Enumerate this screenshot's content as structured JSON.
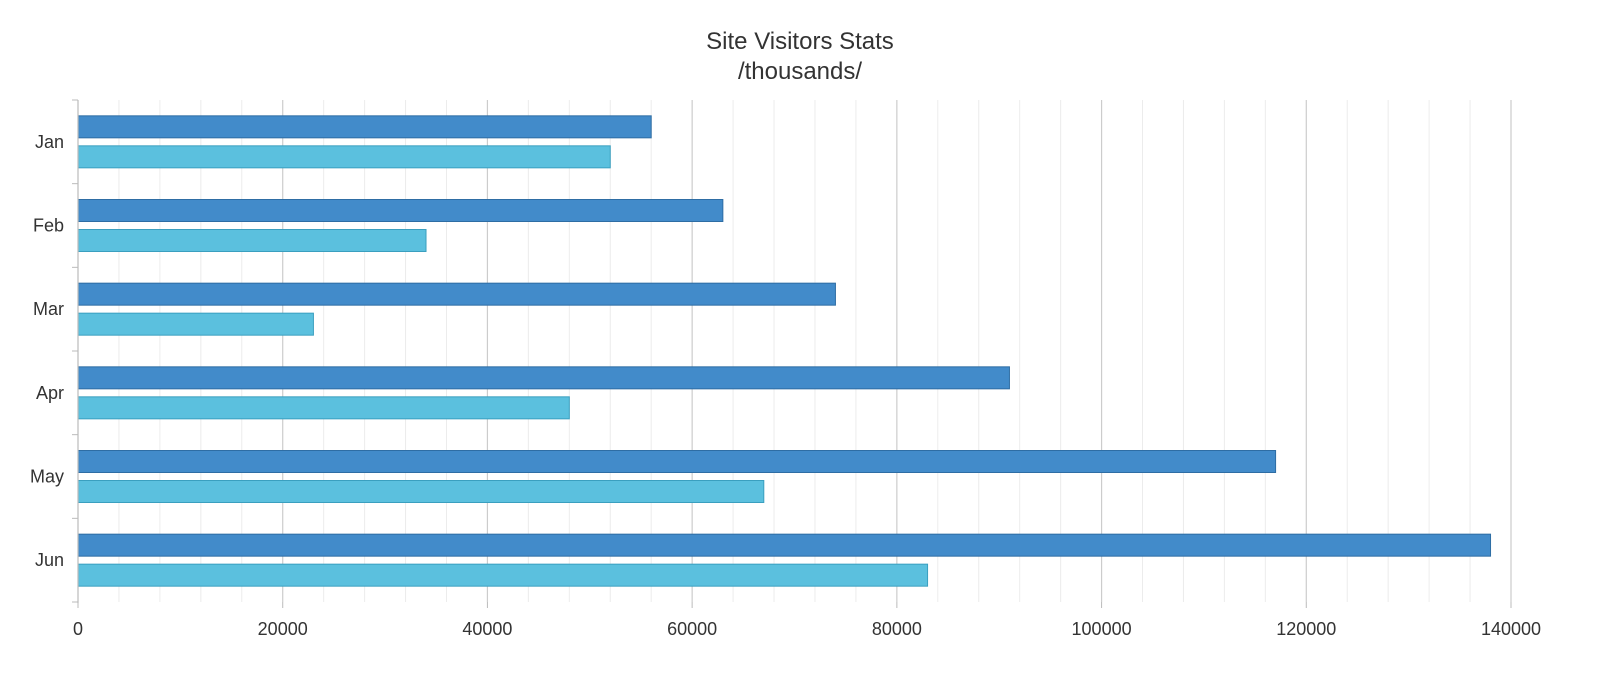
{
  "chart_data": {
    "type": "bar",
    "orientation": "horizontal",
    "title": "Site Visitors Stats",
    "subtitle": "/thousands/",
    "categories": [
      "Jan",
      "Feb",
      "Mar",
      "Apr",
      "May",
      "Jun"
    ],
    "series": [
      {
        "values": [
          56000,
          63000,
          74000,
          91000,
          117000,
          138000
        ],
        "color": "#428bca"
      },
      {
        "values": [
          52000,
          34000,
          23000,
          48000,
          67000,
          83000
        ],
        "color": "#5bc0de"
      }
    ],
    "x_ticks": [
      "0",
      "20000",
      "40000",
      "60000",
      "80000",
      "100000",
      "120000",
      "140000"
    ],
    "xlim": [
      0,
      140000
    ],
    "grid": true,
    "legend": "none"
  }
}
